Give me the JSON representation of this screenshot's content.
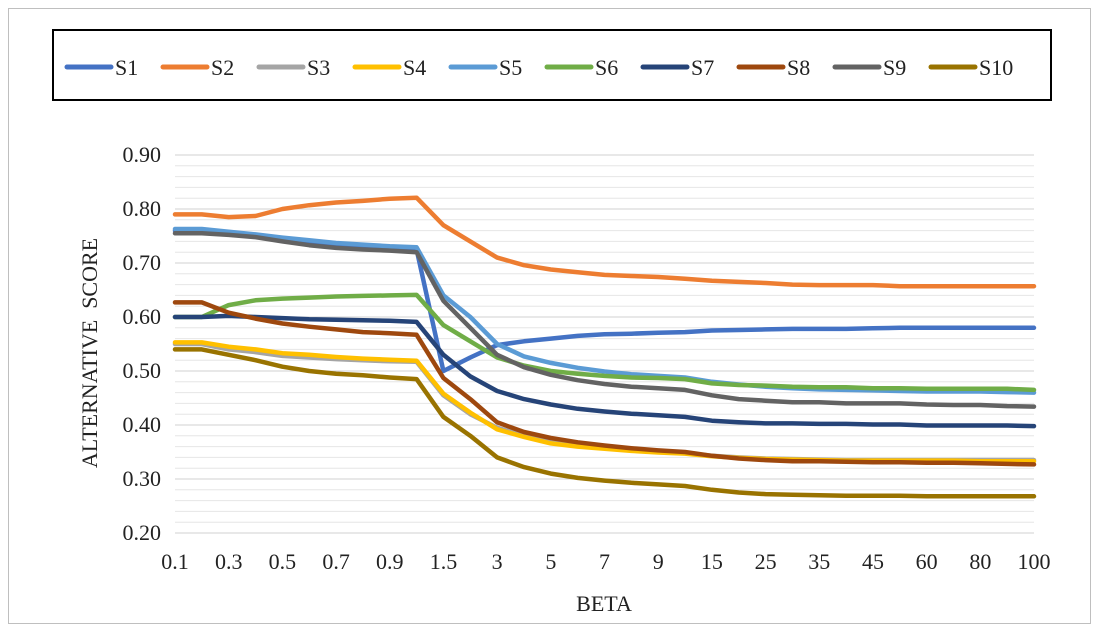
{
  "chart_data": {
    "type": "line",
    "title": "",
    "xlabel": "BETA",
    "ylabel": "ALTERNATIVE  SCORE",
    "ylim": [
      0.2,
      0.9
    ],
    "yticks": [
      "0.20",
      "0.30",
      "0.40",
      "0.50",
      "0.60",
      "0.70",
      "0.80",
      "0.90"
    ],
    "ytick_values": [
      0.2,
      0.3,
      0.4,
      0.5,
      0.6,
      0.7,
      0.8,
      0.9
    ],
    "grid": true,
    "legend_position": "top",
    "x": [
      "0.1",
      "0.2",
      "0.3",
      "0.4",
      "0.5",
      "0.6",
      "0.7",
      "0.8",
      "0.9",
      "1",
      "1.5",
      "2",
      "3",
      "4",
      "5",
      "6",
      "7",
      "8",
      "9",
      "10",
      "15",
      "20",
      "25",
      "30",
      "35",
      "40",
      "45",
      "50",
      "60",
      "70",
      "80",
      "90",
      "100"
    ],
    "xtick_labels_shown": [
      "0.1",
      "0.3",
      "0.5",
      "0.7",
      "0.9",
      "1.5",
      "3",
      "5",
      "7",
      "9",
      "15",
      "25",
      "35",
      "45",
      "60",
      "80",
      "100"
    ],
    "series": [
      {
        "name": "S1",
        "color": "#4472C4",
        "values": [
          0.76,
          0.76,
          0.755,
          0.75,
          0.745,
          0.74,
          0.735,
          0.732,
          0.728,
          0.725,
          0.5,
          0.525,
          0.548,
          0.555,
          0.56,
          0.565,
          0.568,
          0.569,
          0.571,
          0.572,
          0.575,
          0.576,
          0.577,
          0.578,
          0.578,
          0.578,
          0.579,
          0.58,
          0.58,
          0.58,
          0.58,
          0.58,
          0.58
        ]
      },
      {
        "name": "S2",
        "color": "#ED7D31",
        "values": [
          0.79,
          0.79,
          0.785,
          0.787,
          0.8,
          0.807,
          0.812,
          0.815,
          0.819,
          0.821,
          0.77,
          0.74,
          0.71,
          0.696,
          0.688,
          0.683,
          0.678,
          0.676,
          0.674,
          0.671,
          0.667,
          0.665,
          0.663,
          0.66,
          0.659,
          0.659,
          0.659,
          0.657,
          0.657,
          0.657,
          0.657,
          0.657,
          0.657
        ]
      },
      {
        "name": "S3",
        "color": "#A5A5A5",
        "values": [
          0.55,
          0.55,
          0.54,
          0.535,
          0.528,
          0.525,
          0.522,
          0.52,
          0.518,
          0.517,
          0.455,
          0.42,
          0.395,
          0.38,
          0.368,
          0.362,
          0.358,
          0.354,
          0.35,
          0.348,
          0.343,
          0.34,
          0.338,
          0.337,
          0.336,
          0.335,
          0.335,
          0.335,
          0.335,
          0.335,
          0.335,
          0.335,
          0.335
        ]
      },
      {
        "name": "S4",
        "color": "#FFC000",
        "values": [
          0.553,
          0.553,
          0.545,
          0.54,
          0.533,
          0.53,
          0.526,
          0.523,
          0.521,
          0.519,
          0.458,
          0.423,
          0.392,
          0.378,
          0.366,
          0.36,
          0.356,
          0.352,
          0.349,
          0.347,
          0.342,
          0.339,
          0.337,
          0.336,
          0.335,
          0.334,
          0.334,
          0.334,
          0.334,
          0.334,
          0.333,
          0.333,
          0.333
        ]
      },
      {
        "name": "S5",
        "color": "#5B9BD5",
        "values": [
          0.763,
          0.763,
          0.758,
          0.753,
          0.747,
          0.742,
          0.737,
          0.734,
          0.731,
          0.729,
          0.64,
          0.6,
          0.55,
          0.527,
          0.515,
          0.506,
          0.499,
          0.494,
          0.491,
          0.488,
          0.48,
          0.475,
          0.471,
          0.468,
          0.466,
          0.465,
          0.464,
          0.463,
          0.462,
          0.462,
          0.462,
          0.461,
          0.46
        ]
      },
      {
        "name": "S6",
        "color": "#70AD47",
        "values": [
          0.6,
          0.6,
          0.622,
          0.631,
          0.634,
          0.636,
          0.638,
          0.639,
          0.64,
          0.641,
          0.585,
          0.555,
          0.525,
          0.51,
          0.5,
          0.495,
          0.491,
          0.488,
          0.487,
          0.485,
          0.477,
          0.474,
          0.473,
          0.471,
          0.47,
          0.47,
          0.468,
          0.468,
          0.467,
          0.467,
          0.467,
          0.467,
          0.465
        ]
      },
      {
        "name": "S7",
        "color": "#264478",
        "values": [
          0.6,
          0.6,
          0.602,
          0.6,
          0.598,
          0.596,
          0.595,
          0.594,
          0.593,
          0.591,
          0.53,
          0.49,
          0.463,
          0.448,
          0.438,
          0.43,
          0.425,
          0.421,
          0.418,
          0.415,
          0.408,
          0.405,
          0.403,
          0.403,
          0.402,
          0.402,
          0.401,
          0.401,
          0.399,
          0.399,
          0.399,
          0.399,
          0.398
        ]
      },
      {
        "name": "S8",
        "color": "#9E480E",
        "values": [
          0.627,
          0.627,
          0.608,
          0.597,
          0.588,
          0.582,
          0.577,
          0.572,
          0.57,
          0.567,
          0.487,
          0.448,
          0.405,
          0.387,
          0.376,
          0.368,
          0.362,
          0.357,
          0.353,
          0.35,
          0.343,
          0.338,
          0.335,
          0.333,
          0.333,
          0.332,
          0.331,
          0.331,
          0.33,
          0.33,
          0.329,
          0.328,
          0.327
        ]
      },
      {
        "name": "S9",
        "color": "#636363",
        "values": [
          0.755,
          0.755,
          0.752,
          0.748,
          0.74,
          0.733,
          0.728,
          0.725,
          0.723,
          0.72,
          0.63,
          0.58,
          0.53,
          0.507,
          0.493,
          0.483,
          0.476,
          0.471,
          0.468,
          0.465,
          0.455,
          0.448,
          0.445,
          0.442,
          0.442,
          0.44,
          0.44,
          0.44,
          0.438,
          0.437,
          0.437,
          0.435,
          0.434
        ]
      },
      {
        "name": "S10",
        "color": "#997300",
        "values": [
          0.54,
          0.54,
          0.53,
          0.52,
          0.508,
          0.5,
          0.495,
          0.492,
          0.488,
          0.485,
          0.415,
          0.38,
          0.34,
          0.322,
          0.31,
          0.302,
          0.297,
          0.293,
          0.29,
          0.287,
          0.28,
          0.275,
          0.272,
          0.271,
          0.27,
          0.269,
          0.269,
          0.269,
          0.268,
          0.268,
          0.268,
          0.268,
          0.268
        ]
      }
    ]
  }
}
